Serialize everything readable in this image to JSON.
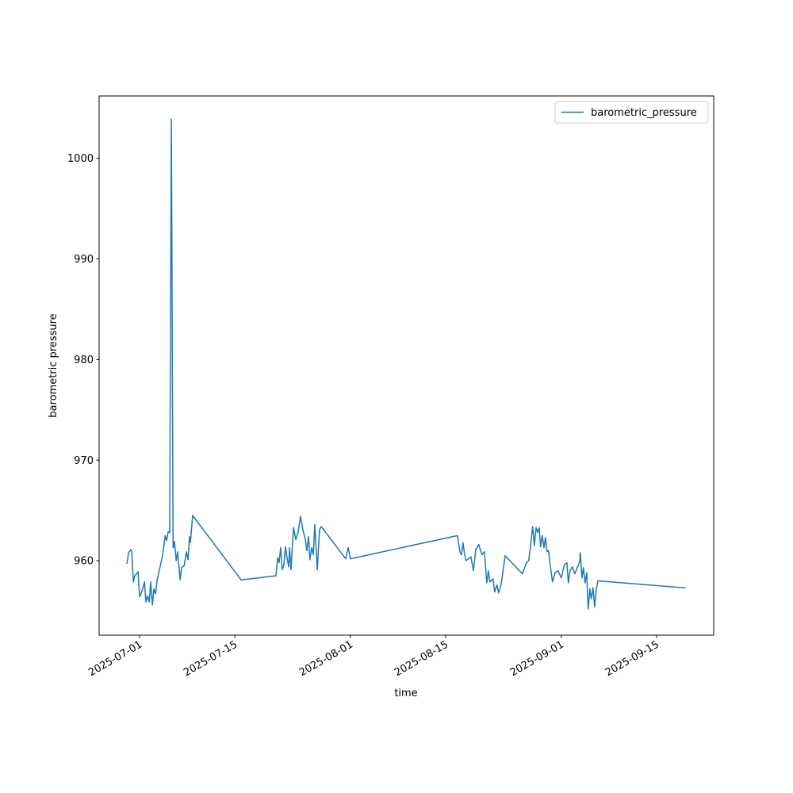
{
  "chart_data": {
    "type": "line",
    "x_label": "time",
    "y_label": "barometric pressure",
    "x": [
      "2025-06-29 03:00",
      "2025-06-29 09:00",
      "2025-06-29 17:00",
      "2025-06-29 20:00",
      "2025-06-30 02:00",
      "2025-06-30 07:00",
      "2025-06-30 18:00",
      "2025-07-01 00:00",
      "2025-07-01 11:00",
      "2025-07-01 17:00",
      "2025-07-01 22:00",
      "2025-07-02 04:00",
      "2025-07-02 10:00",
      "2025-07-02 15:00",
      "2025-07-02 21:00",
      "2025-07-03 02:00",
      "2025-07-03 08:00",
      "2025-07-03 14:00",
      "2025-07-04 09:00",
      "2025-07-04 18:00",
      "2025-07-04 23:00",
      "2025-07-05 05:00",
      "2025-07-05 10:00",
      "2025-07-05 16:00",
      "2025-07-05 22:00",
      "2025-07-06 03:00",
      "2025-07-06 09:00",
      "2025-07-06 14:00",
      "2025-07-06 23:00",
      "2025-07-07 04:00",
      "2025-07-07 13:00",
      "2025-07-07 21:00",
      "2025-07-08 03:00",
      "2025-07-08 08:00",
      "2025-07-08 11:00",
      "2025-07-08 19:00",
      "2025-07-15 22:00",
      "2025-07-21 01:00",
      "2025-07-21 07:00",
      "2025-07-21 12:00",
      "2025-07-21 18:00",
      "2025-07-21 23:00",
      "2025-07-22 05:00",
      "2025-07-22 11:00",
      "2025-07-22 16:00",
      "2025-07-22 22:00",
      "2025-07-23 01:00",
      "2025-07-23 06:00",
      "2025-07-23 15:00",
      "2025-07-23 23:00",
      "2025-07-24 07:00",
      "2025-07-24 16:00",
      "2025-07-25 00:00",
      "2025-07-25 09:00",
      "2025-07-25 14:00",
      "2025-07-25 20:00",
      "2025-07-26 01:00",
      "2025-07-26 07:00",
      "2025-07-26 13:00",
      "2025-07-26 18:00",
      "2025-07-27 03:00",
      "2025-07-27 11:00",
      "2025-07-27 17:00",
      "2025-07-31 07:00",
      "2025-07-31 16:00",
      "2025-08-01 00:00",
      "2025-08-16 18:00",
      "2025-08-17 02:00",
      "2025-08-17 08:00",
      "2025-08-17 13:00",
      "2025-08-17 19:00",
      "2025-08-18 00:00",
      "2025-08-18 17:00",
      "2025-08-19 02:00",
      "2025-08-19 10:00",
      "2025-08-19 21:00",
      "2025-08-20 08:00",
      "2025-08-20 17:00",
      "2025-08-21 01:00",
      "2025-08-21 07:00",
      "2025-08-21 12:00",
      "2025-08-21 23:00",
      "2025-08-22 05:00",
      "2025-08-22 13:00",
      "2025-08-22 19:00",
      "2025-08-23 04:00",
      "2025-08-23 18:00",
      "2025-08-26 07:00",
      "2025-08-26 21:00",
      "2025-08-27 05:00",
      "2025-08-27 11:00",
      "2025-08-27 19:00",
      "2025-08-28 01:00",
      "2025-08-28 07:00",
      "2025-08-28 12:00",
      "2025-08-28 18:00",
      "2025-08-28 23:00",
      "2025-08-29 05:00",
      "2025-08-29 11:00",
      "2025-08-29 16:00",
      "2025-08-29 22:00",
      "2025-08-30 03:00",
      "2025-08-30 09:00",
      "2025-08-30 17:00",
      "2025-08-31 02:00",
      "2025-08-31 13:00",
      "2025-09-01 00:00",
      "2025-09-01 11:00",
      "2025-09-01 20:00",
      "2025-09-02 01:00",
      "2025-09-02 07:00",
      "2025-09-02 15:00",
      "2025-09-03 00:00",
      "2025-09-03 08:00",
      "2025-09-03 17:00",
      "2025-09-03 19:00",
      "2025-09-04 01:00",
      "2025-09-04 06:00",
      "2025-09-04 12:00",
      "2025-09-04 18:00",
      "2025-09-04 23:00",
      "2025-09-05 05:00",
      "2025-09-05 10:00",
      "2025-09-05 16:00",
      "2025-09-05 22:00",
      "2025-09-06 03:00",
      "2025-09-06 09:00",
      "2025-09-19 07:00"
    ],
    "series": [
      {
        "name": "barometric_pressure",
        "color": "#1f77b4",
        "values": [
          959.7,
          960.8,
          961.1,
          960.9,
          957.9,
          958.5,
          958.9,
          956.4,
          957.2,
          957.9,
          955.9,
          956.5,
          955.9,
          957.9,
          955.6,
          957.2,
          956.7,
          958.1,
          960.5,
          962.5,
          962.0,
          962.9,
          962.8,
          1003.9,
          961.3,
          961.9,
          960.0,
          960.9,
          958.1,
          959.3,
          959.5,
          960.9,
          960.1,
          962.4,
          961.8,
          964.5,
          958.1,
          958.5,
          960.3,
          959.8,
          961.3,
          959.1,
          959.6,
          961.4,
          960.3,
          959.4,
          961.3,
          959.1,
          963.3,
          962.1,
          962.8,
          964.4,
          963.1,
          962.1,
          961.0,
          962.4,
          960.1,
          961.3,
          960.6,
          963.6,
          959.1,
          963.1,
          963.4,
          960.2,
          961.3,
          960.2,
          962.5,
          960.9,
          960.6,
          961.8,
          960.6,
          960.0,
          960.4,
          959.0,
          961.1,
          961.6,
          960.6,
          960.9,
          957.8,
          959.0,
          957.9,
          958.2,
          956.9,
          957.6,
          956.8,
          957.7,
          960.5,
          958.7,
          959.8,
          960.0,
          961.3,
          963.4,
          961.5,
          963.3,
          962.8,
          963.3,
          961.4,
          962.5,
          961.3,
          962.3,
          960.9,
          961.0,
          959.6,
          957.9,
          958.8,
          959.0,
          958.3,
          959.6,
          959.8,
          957.8,
          959.0,
          959.4,
          958.7,
          959.3,
          959.9,
          960.8,
          958.3,
          959.3,
          957.8,
          958.8,
          955.2,
          957.2,
          956.2,
          957.3,
          955.4,
          957.0,
          958.0,
          957.3
        ]
      }
    ],
    "xlim": [
      "2025-06-25 01:00",
      "2025-09-23 10:00"
    ],
    "xticks": [
      "2025-07-01",
      "2025-07-15",
      "2025-08-01",
      "2025-08-15",
      "2025-09-01",
      "2025-09-15"
    ],
    "ylim": [
      952.6,
      1006.2
    ],
    "yticks": [
      960,
      970,
      980,
      990,
      1000
    ],
    "legend": "upper right"
  }
}
